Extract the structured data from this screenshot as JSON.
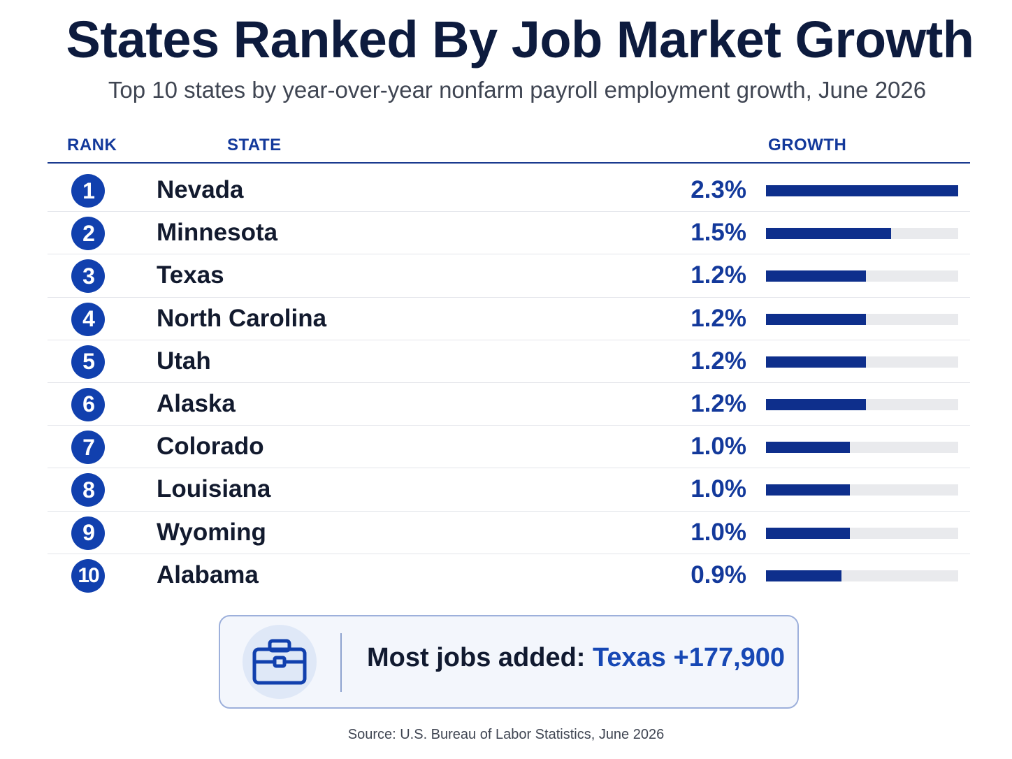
{
  "title": "States Ranked By Job Market Growth",
  "subtitle": "Top 10 states by year-over-year nonfarm payroll employment growth, June 2026",
  "columns": {
    "rank": "RANK",
    "state": "STATE",
    "growth": "GROWTH"
  },
  "colors": {
    "accent": "#1140ae",
    "bar": "#0e2f8c",
    "track": "#e9eaed",
    "highlight": "#1748b5"
  },
  "chart_data": {
    "type": "bar",
    "orientation": "horizontal",
    "title": "States Ranked By Job Market Growth",
    "subtitle": "Top 10 states by year-over-year nonfarm payroll employment growth, June 2026",
    "xlim": [
      0,
      2.3
    ],
    "unit": "%",
    "rows": [
      {
        "rank": "1",
        "state": "Nevada",
        "value": 2.3,
        "label": "2.3%"
      },
      {
        "rank": "2",
        "state": "Minnesota",
        "value": 1.5,
        "label": "1.5%"
      },
      {
        "rank": "3",
        "state": "Texas",
        "value": 1.2,
        "label": "1.2%"
      },
      {
        "rank": "4",
        "state": "North Carolina",
        "value": 1.2,
        "label": "1.2%"
      },
      {
        "rank": "5",
        "state": "Utah",
        "value": 1.2,
        "label": "1.2%"
      },
      {
        "rank": "6",
        "state": "Alaska",
        "value": 1.2,
        "label": "1.2%"
      },
      {
        "rank": "7",
        "state": "Colorado",
        "value": 1.0,
        "label": "1.0%"
      },
      {
        "rank": "8",
        "state": "Louisiana",
        "value": 1.0,
        "label": "1.0%"
      },
      {
        "rank": "9",
        "state": "Wyoming",
        "value": 1.0,
        "label": "1.0%"
      },
      {
        "rank": "10",
        "state": "Alabama",
        "value": 0.9,
        "label": "0.9%"
      }
    ]
  },
  "callout": {
    "icon": "briefcase-icon",
    "label": "Most jobs added:",
    "highlight": "Texas +177,900"
  },
  "source": "Source: U.S. Bureau of Labor Statistics, June 2026"
}
